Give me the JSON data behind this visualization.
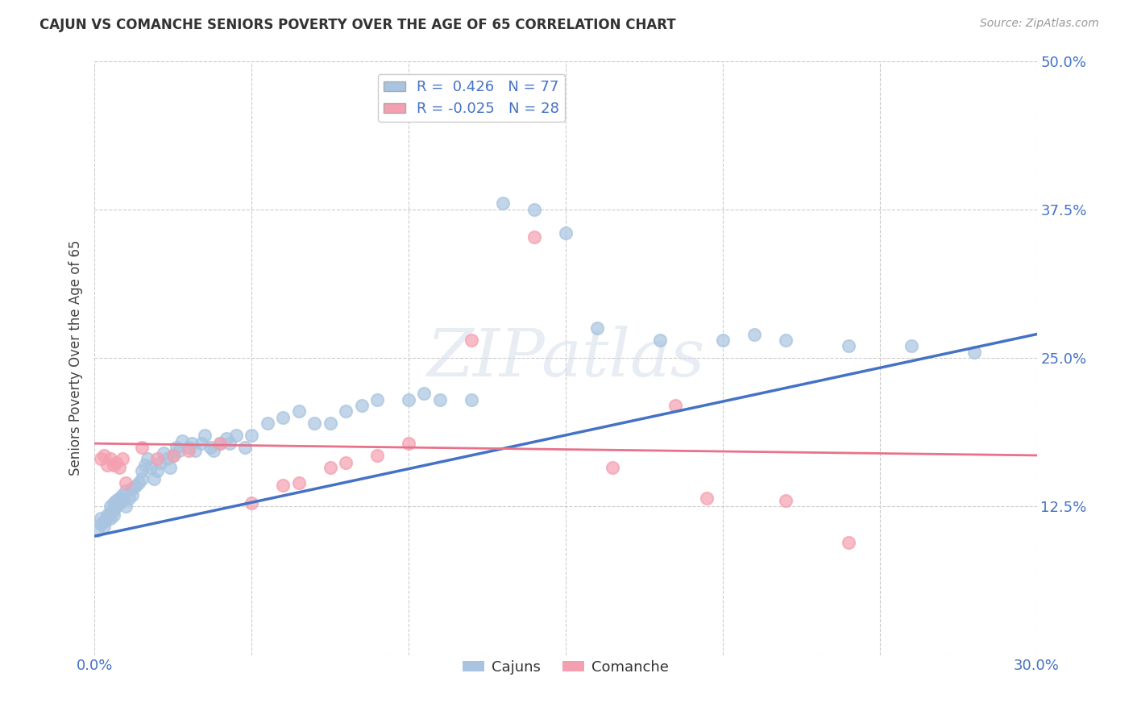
{
  "title": "CAJUN VS COMANCHE SENIORS POVERTY OVER THE AGE OF 65 CORRELATION CHART",
  "source": "Source: ZipAtlas.com",
  "ylabel": "Seniors Poverty Over the Age of 65",
  "x_min": 0.0,
  "x_max": 0.3,
  "y_min": 0.0,
  "y_max": 0.5,
  "x_ticks": [
    0.0,
    0.05,
    0.1,
    0.15,
    0.2,
    0.25,
    0.3
  ],
  "y_ticks": [
    0.0,
    0.125,
    0.25,
    0.375,
    0.5
  ],
  "cajun_R": 0.426,
  "cajun_N": 77,
  "comanche_R": -0.025,
  "comanche_N": 28,
  "cajun_color": "#a8c4e0",
  "comanche_color": "#f4a0b0",
  "cajun_line_color": "#4472c4",
  "comanche_line_color": "#e8728a",
  "watermark": "ZIPatlas",
  "background_color": "#ffffff",
  "grid_color": "#cccccc",
  "cajun_scatter_x": [
    0.001,
    0.002,
    0.002,
    0.003,
    0.003,
    0.004,
    0.004,
    0.005,
    0.005,
    0.005,
    0.006,
    0.006,
    0.006,
    0.007,
    0.007,
    0.008,
    0.008,
    0.009,
    0.009,
    0.01,
    0.01,
    0.011,
    0.012,
    0.012,
    0.013,
    0.014,
    0.015,
    0.015,
    0.016,
    0.017,
    0.018,
    0.019,
    0.02,
    0.021,
    0.022,
    0.023,
    0.024,
    0.025,
    0.026,
    0.027,
    0.028,
    0.03,
    0.031,
    0.032,
    0.034,
    0.035,
    0.037,
    0.038,
    0.04,
    0.042,
    0.043,
    0.045,
    0.048,
    0.05,
    0.055,
    0.06,
    0.065,
    0.07,
    0.075,
    0.08,
    0.085,
    0.09,
    0.1,
    0.105,
    0.11,
    0.12,
    0.13,
    0.14,
    0.15,
    0.16,
    0.18,
    0.2,
    0.21,
    0.22,
    0.24,
    0.26,
    0.28
  ],
  "cajun_scatter_y": [
    0.105,
    0.11,
    0.115,
    0.108,
    0.112,
    0.118,
    0.115,
    0.12,
    0.125,
    0.115,
    0.128,
    0.122,
    0.118,
    0.13,
    0.125,
    0.132,
    0.128,
    0.135,
    0.13,
    0.138,
    0.125,
    0.132,
    0.14,
    0.135,
    0.142,
    0.145,
    0.155,
    0.148,
    0.16,
    0.165,
    0.158,
    0.148,
    0.155,
    0.162,
    0.17,
    0.165,
    0.158,
    0.168,
    0.175,
    0.172,
    0.18,
    0.175,
    0.178,
    0.172,
    0.178,
    0.185,
    0.175,
    0.172,
    0.178,
    0.182,
    0.178,
    0.185,
    0.175,
    0.185,
    0.195,
    0.2,
    0.205,
    0.195,
    0.195,
    0.205,
    0.21,
    0.215,
    0.215,
    0.22,
    0.215,
    0.215,
    0.38,
    0.375,
    0.355,
    0.275,
    0.265,
    0.265,
    0.27,
    0.265,
    0.26,
    0.26,
    0.255
  ],
  "comanche_scatter_x": [
    0.002,
    0.003,
    0.004,
    0.005,
    0.006,
    0.007,
    0.008,
    0.009,
    0.01,
    0.015,
    0.02,
    0.025,
    0.03,
    0.04,
    0.05,
    0.06,
    0.065,
    0.075,
    0.08,
    0.09,
    0.1,
    0.12,
    0.14,
    0.165,
    0.185,
    0.195,
    0.22,
    0.24
  ],
  "comanche_scatter_y": [
    0.165,
    0.168,
    0.16,
    0.165,
    0.16,
    0.162,
    0.158,
    0.165,
    0.145,
    0.175,
    0.165,
    0.168,
    0.172,
    0.178,
    0.128,
    0.143,
    0.145,
    0.158,
    0.162,
    0.168,
    0.178,
    0.265,
    0.352,
    0.158,
    0.21,
    0.132,
    0.13,
    0.095
  ],
  "cajun_line_y_start": 0.1,
  "cajun_line_y_end": 0.27,
  "comanche_line_y_start": 0.178,
  "comanche_line_y_end": 0.168
}
